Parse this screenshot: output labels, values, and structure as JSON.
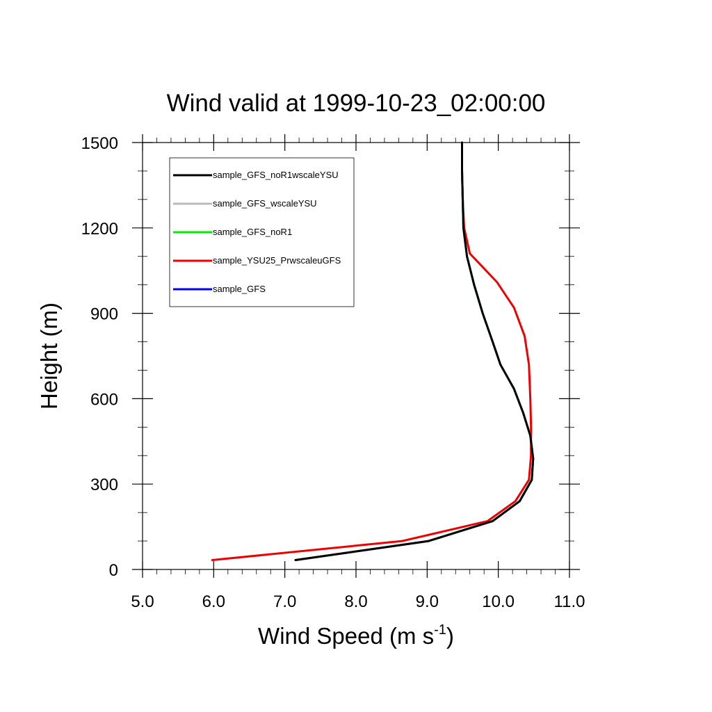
{
  "chart_data": {
    "type": "line",
    "title": "Wind valid at 1999-10-23_02:00:00",
    "xlabel": "Wind Speed (m s",
    "xlabel_superscript": "-1",
    "xlabel_suffix": ")",
    "ylabel": "Height (m)",
    "xlim": [
      5.0,
      11.0
    ],
    "ylim": [
      0,
      1500
    ],
    "xticks": [
      "5.0",
      "6.0",
      "7.0",
      "8.0",
      "9.0",
      "10.0",
      "11.0"
    ],
    "yticks": [
      "0",
      "300",
      "600",
      "900",
      "1200",
      "1500"
    ],
    "grid": false,
    "legend_position": "top-left",
    "series": [
      {
        "name": "sample_GFS_noR1wscaleYSU",
        "color": "#000000",
        "x": [
          7.15,
          9.02,
          9.92,
          10.3,
          10.47,
          10.49,
          10.45,
          10.35,
          10.22,
          10.03,
          9.92,
          9.78,
          9.66,
          9.56,
          9.51,
          9.5,
          9.49,
          9.49
        ],
        "y": [
          33,
          100,
          170,
          240,
          315,
          390,
          470,
          550,
          635,
          720,
          800,
          900,
          1000,
          1100,
          1200,
          1300,
          1400,
          1500
        ]
      },
      {
        "name": "sample_GFS_wscaleYSU",
        "color": "#bbbbbb",
        "x": [
          7.15,
          9.02,
          9.92,
          10.3,
          10.47,
          10.49,
          10.45,
          10.35,
          10.22,
          10.03,
          9.92,
          9.78,
          9.66,
          9.56,
          9.51,
          9.5,
          9.49,
          9.49
        ],
        "y": [
          33,
          100,
          170,
          240,
          315,
          390,
          470,
          550,
          635,
          720,
          800,
          900,
          1000,
          1100,
          1200,
          1300,
          1400,
          1500
        ]
      },
      {
        "name": "sample_GFS_noR1",
        "color": "#00ee00",
        "x": [
          7.15,
          9.02,
          9.92,
          10.3,
          10.47,
          10.49,
          10.45,
          10.35,
          10.22,
          10.03,
          9.92,
          9.78,
          9.66,
          9.56,
          9.51,
          9.5,
          9.49,
          9.49
        ],
        "y": [
          33,
          100,
          170,
          240,
          315,
          390,
          470,
          550,
          635,
          720,
          800,
          900,
          1000,
          1100,
          1200,
          1300,
          1400,
          1500
        ]
      },
      {
        "name": "sample_YSU25_PrwscaleuGFS",
        "color": "#ee0000",
        "x": [
          5.98,
          8.65,
          9.85,
          10.24,
          10.43,
          10.46,
          10.46,
          10.45,
          10.43,
          10.37,
          10.22,
          9.98,
          9.6,
          9.52,
          9.5,
          9.49,
          9.49
        ],
        "y": [
          33,
          100,
          170,
          240,
          315,
          400,
          500,
          600,
          720,
          820,
          920,
          1010,
          1110,
          1200,
          1300,
          1400,
          1500
        ]
      },
      {
        "name": "sample_GFS",
        "color": "#0000ee",
        "x": [
          7.15,
          9.02,
          9.92,
          10.3,
          10.47,
          10.49,
          10.45,
          10.35,
          10.22,
          10.03,
          9.92,
          9.78,
          9.66,
          9.56,
          9.51,
          9.5,
          9.49,
          9.49
        ],
        "y": [
          33,
          100,
          170,
          240,
          315,
          390,
          470,
          550,
          635,
          720,
          800,
          900,
          1000,
          1100,
          1200,
          1300,
          1400,
          1500
        ]
      }
    ],
    "draw_order": [
      4,
      2,
      3,
      1,
      0
    ]
  }
}
